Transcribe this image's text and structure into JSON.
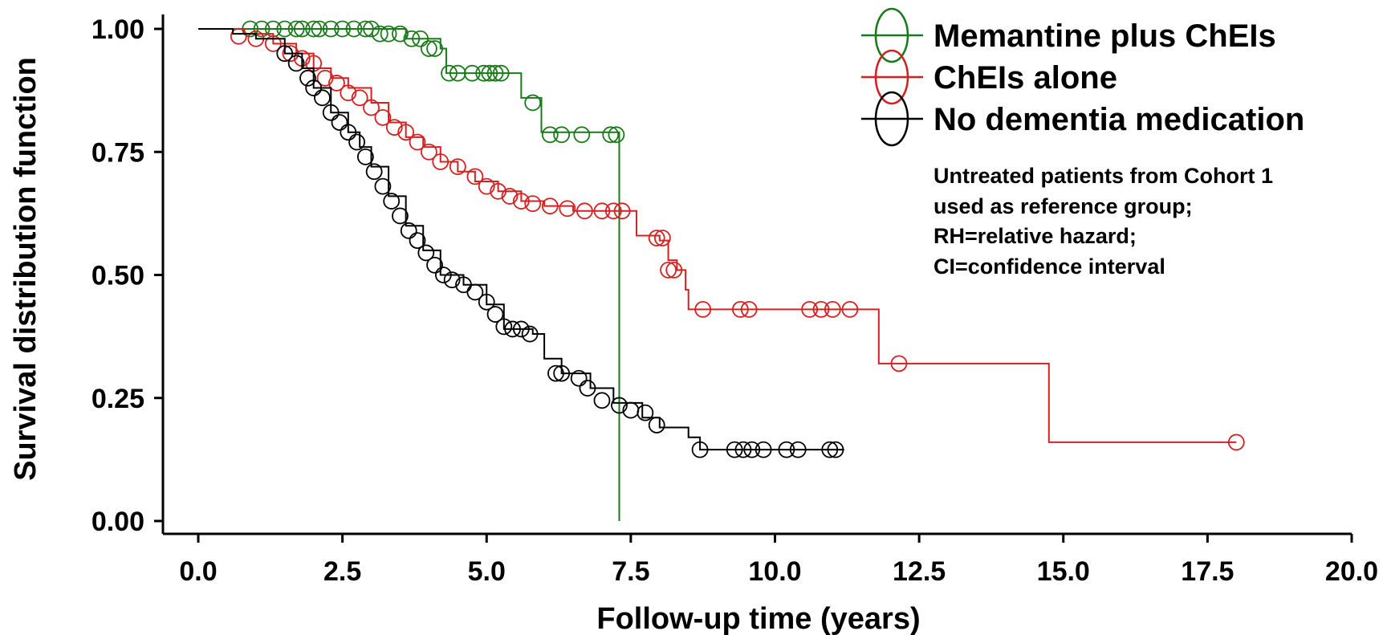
{
  "chart_data": {
    "type": "line",
    "title": "",
    "xlabel": "Follow-up time (years)",
    "ylabel": "Survival distribution function",
    "xlim": [
      0,
      20
    ],
    "ylim": [
      0,
      1
    ],
    "xticks": [
      "0.0",
      "2.5",
      "5.0",
      "7.5",
      "10.0",
      "12.5",
      "15.0",
      "17.5",
      "20.0"
    ],
    "yticks": [
      "0.00",
      "0.25",
      "0.50",
      "0.75",
      "1.00"
    ],
    "grid": false,
    "legend_position": "top-right",
    "legend": [
      "Memantine plus ChEIs",
      "ChEIs alone",
      "No dementia medication"
    ],
    "annotation": [
      "Untreated patients from Cohort 1",
      "used as reference group;",
      "RH=relative hazard;",
      "CI=confidence interval"
    ],
    "series": [
      {
        "name": "Memantine plus ChEIs",
        "color": "#1a7a1a",
        "steps": [
          [
            0,
            1.0
          ],
          [
            1.2,
            1.0
          ],
          [
            3.6,
            0.98
          ],
          [
            4.2,
            0.96
          ],
          [
            4.3,
            0.91
          ],
          [
            5.3,
            0.91
          ],
          [
            5.6,
            0.86
          ],
          [
            5.95,
            0.79
          ],
          [
            7.3,
            0.79
          ],
          [
            7.3,
            0.0
          ]
        ],
        "censored": [
          [
            0.9,
            1.0
          ],
          [
            1.1,
            1.0
          ],
          [
            1.3,
            1.0
          ],
          [
            1.5,
            1.0
          ],
          [
            1.7,
            1.0
          ],
          [
            1.8,
            1.0
          ],
          [
            2.0,
            1.0
          ],
          [
            2.1,
            1.0
          ],
          [
            2.3,
            1.0
          ],
          [
            2.5,
            1.0
          ],
          [
            2.7,
            1.0
          ],
          [
            2.9,
            1.0
          ],
          [
            3.0,
            1.0
          ],
          [
            3.15,
            0.99
          ],
          [
            3.3,
            0.99
          ],
          [
            3.5,
            0.99
          ],
          [
            3.7,
            0.98
          ],
          [
            3.85,
            0.98
          ],
          [
            4.0,
            0.96
          ],
          [
            4.1,
            0.96
          ],
          [
            4.35,
            0.91
          ],
          [
            4.5,
            0.91
          ],
          [
            4.75,
            0.91
          ],
          [
            4.95,
            0.91
          ],
          [
            5.05,
            0.91
          ],
          [
            5.15,
            0.91
          ],
          [
            5.25,
            0.91
          ],
          [
            5.8,
            0.85
          ],
          [
            6.1,
            0.785
          ],
          [
            6.3,
            0.785
          ],
          [
            6.65,
            0.785
          ],
          [
            7.15,
            0.785
          ],
          [
            7.25,
            0.785
          ]
        ]
      },
      {
        "name": "ChEIs alone",
        "color": "#d42020",
        "steps": [
          [
            0,
            1.0
          ],
          [
            0.8,
            0.99
          ],
          [
            1.3,
            0.97
          ],
          [
            1.7,
            0.95
          ],
          [
            2.0,
            0.92
          ],
          [
            2.3,
            0.9
          ],
          [
            2.6,
            0.88
          ],
          [
            3.0,
            0.85
          ],
          [
            3.3,
            0.81
          ],
          [
            3.6,
            0.78
          ],
          [
            3.9,
            0.76
          ],
          [
            4.2,
            0.73
          ],
          [
            4.5,
            0.71
          ],
          [
            4.8,
            0.69
          ],
          [
            5.2,
            0.67
          ],
          [
            5.6,
            0.65
          ],
          [
            6.0,
            0.64
          ],
          [
            6.5,
            0.63
          ],
          [
            7.4,
            0.63
          ],
          [
            7.6,
            0.58
          ],
          [
            8.0,
            0.57
          ],
          [
            8.15,
            0.53
          ],
          [
            8.3,
            0.51
          ],
          [
            8.45,
            0.47
          ],
          [
            8.5,
            0.43
          ],
          [
            11.8,
            0.43
          ],
          [
            11.8,
            0.32
          ],
          [
            14.75,
            0.32
          ],
          [
            14.75,
            0.16
          ],
          [
            18.0,
            0.16
          ]
        ],
        "censored": [
          [
            0.7,
            0.985
          ],
          [
            1.0,
            0.98
          ],
          [
            1.3,
            0.97
          ],
          [
            1.6,
            0.95
          ],
          [
            1.8,
            0.94
          ],
          [
            2.0,
            0.93
          ],
          [
            2.2,
            0.9
          ],
          [
            2.4,
            0.89
          ],
          [
            2.6,
            0.87
          ],
          [
            2.8,
            0.86
          ],
          [
            3.0,
            0.84
          ],
          [
            3.2,
            0.82
          ],
          [
            3.4,
            0.8
          ],
          [
            3.6,
            0.79
          ],
          [
            3.8,
            0.77
          ],
          [
            4.0,
            0.75
          ],
          [
            4.2,
            0.73
          ],
          [
            4.5,
            0.72
          ],
          [
            4.8,
            0.7
          ],
          [
            5.0,
            0.68
          ],
          [
            5.2,
            0.67
          ],
          [
            5.4,
            0.66
          ],
          [
            5.6,
            0.65
          ],
          [
            5.8,
            0.645
          ],
          [
            6.1,
            0.64
          ],
          [
            6.4,
            0.635
          ],
          [
            6.7,
            0.63
          ],
          [
            7.0,
            0.63
          ],
          [
            7.2,
            0.63
          ],
          [
            7.35,
            0.63
          ],
          [
            7.95,
            0.575
          ],
          [
            8.05,
            0.575
          ],
          [
            8.15,
            0.51
          ],
          [
            8.25,
            0.51
          ],
          [
            8.75,
            0.43
          ],
          [
            9.4,
            0.43
          ],
          [
            9.55,
            0.43
          ],
          [
            10.6,
            0.43
          ],
          [
            10.8,
            0.43
          ],
          [
            11.0,
            0.43
          ],
          [
            11.3,
            0.43
          ],
          [
            12.15,
            0.32
          ],
          [
            18.0,
            0.16
          ]
        ]
      },
      {
        "name": "No dementia medication",
        "color": "#000000",
        "steps": [
          [
            0,
            1.0
          ],
          [
            0.6,
            0.99
          ],
          [
            1.0,
            0.98
          ],
          [
            1.5,
            0.95
          ],
          [
            1.8,
            0.92
          ],
          [
            2.0,
            0.88
          ],
          [
            2.3,
            0.83
          ],
          [
            2.6,
            0.79
          ],
          [
            2.8,
            0.76
          ],
          [
            3.0,
            0.72
          ],
          [
            3.3,
            0.66
          ],
          [
            3.6,
            0.6
          ],
          [
            3.9,
            0.55
          ],
          [
            4.2,
            0.5
          ],
          [
            4.6,
            0.48
          ],
          [
            5.0,
            0.44
          ],
          [
            5.3,
            0.39
          ],
          [
            5.8,
            0.38
          ],
          [
            6.0,
            0.33
          ],
          [
            6.3,
            0.3
          ],
          [
            6.8,
            0.27
          ],
          [
            7.2,
            0.24
          ],
          [
            7.7,
            0.21
          ],
          [
            8.0,
            0.19
          ],
          [
            8.5,
            0.17
          ],
          [
            8.7,
            0.145
          ],
          [
            11.2,
            0.145
          ]
        ],
        "censored": [
          [
            1.5,
            0.95
          ],
          [
            1.7,
            0.93
          ],
          [
            1.9,
            0.9
          ],
          [
            2.0,
            0.88
          ],
          [
            2.15,
            0.86
          ],
          [
            2.3,
            0.83
          ],
          [
            2.45,
            0.81
          ],
          [
            2.6,
            0.79
          ],
          [
            2.75,
            0.77
          ],
          [
            2.9,
            0.74
          ],
          [
            3.05,
            0.71
          ],
          [
            3.2,
            0.68
          ],
          [
            3.35,
            0.65
          ],
          [
            3.5,
            0.62
          ],
          [
            3.65,
            0.59
          ],
          [
            3.8,
            0.57
          ],
          [
            3.95,
            0.545
          ],
          [
            4.1,
            0.52
          ],
          [
            4.25,
            0.5
          ],
          [
            4.4,
            0.49
          ],
          [
            4.6,
            0.48
          ],
          [
            4.8,
            0.465
          ],
          [
            5.0,
            0.445
          ],
          [
            5.15,
            0.42
          ],
          [
            5.3,
            0.395
          ],
          [
            5.45,
            0.39
          ],
          [
            5.6,
            0.39
          ],
          [
            5.75,
            0.38
          ],
          [
            6.2,
            0.3
          ],
          [
            6.3,
            0.3
          ],
          [
            6.6,
            0.29
          ],
          [
            6.75,
            0.27
          ],
          [
            7.0,
            0.245
          ],
          [
            7.3,
            0.235
          ],
          [
            7.5,
            0.225
          ],
          [
            7.75,
            0.22
          ],
          [
            7.95,
            0.195
          ],
          [
            8.7,
            0.145
          ],
          [
            9.3,
            0.145
          ],
          [
            9.45,
            0.145
          ],
          [
            9.6,
            0.145
          ],
          [
            9.8,
            0.145
          ],
          [
            10.2,
            0.145
          ],
          [
            10.4,
            0.145
          ],
          [
            10.95,
            0.145
          ],
          [
            11.05,
            0.145
          ]
        ]
      }
    ]
  }
}
